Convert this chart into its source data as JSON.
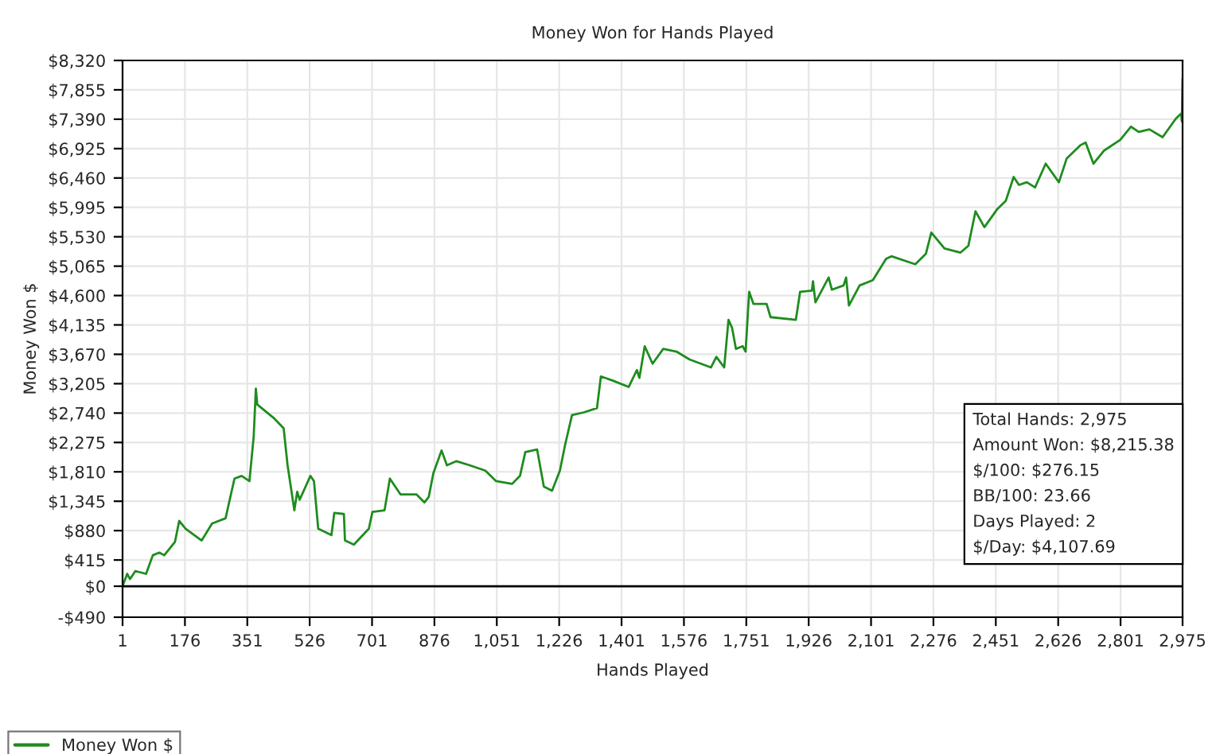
{
  "chart_data": {
    "type": "line",
    "title": "Money Won for Hands Played",
    "xlabel": "Hands Played",
    "ylabel": "Money Won $",
    "xlim": [
      1,
      2975
    ],
    "xticks": [
      1,
      176,
      351,
      526,
      701,
      876,
      {
        "value": 1051,
        "label": "1,051"
      },
      {
        "value": 1226,
        "label": "1,226"
      },
      {
        "value": 1401,
        "label": "1,401"
      },
      {
        "value": 1576,
        "label": "1,576"
      },
      {
        "value": 1751,
        "label": "1,751"
      },
      {
        "value": 1926,
        "label": "1,926"
      },
      {
        "value": 2101,
        "label": "2,101"
      },
      {
        "value": 2276,
        "label": "2,276"
      },
      {
        "value": 2451,
        "label": "2,451"
      },
      {
        "value": 2626,
        "label": "2,626"
      },
      {
        "value": 2801,
        "label": "2,801"
      },
      {
        "value": 2975,
        "label": "2,975"
      }
    ],
    "ylim": [
      -490,
      8320
    ],
    "yticks": [
      {
        "value": -490,
        "label": "-$490"
      },
      {
        "value": 0,
        "label": "$0"
      },
      {
        "value": 415,
        "label": "$415"
      },
      {
        "value": 880,
        "label": "$880"
      },
      {
        "value": 1345,
        "label": "$1,345"
      },
      {
        "value": 1810,
        "label": "$1,810"
      },
      {
        "value": 2275,
        "label": "$2,275"
      },
      {
        "value": 2740,
        "label": "$2,740"
      },
      {
        "value": 3205,
        "label": "$3,205"
      },
      {
        "value": 3670,
        "label": "$3,670"
      },
      {
        "value": 4135,
        "label": "$4,135"
      },
      {
        "value": 4600,
        "label": "$4,600"
      },
      {
        "value": 5065,
        "label": "$5,065"
      },
      {
        "value": 5530,
        "label": "$5,530"
      },
      {
        "value": 5995,
        "label": "$5,995"
      },
      {
        "value": 6460,
        "label": "$6,460"
      },
      {
        "value": 6925,
        "label": "$6,925"
      },
      {
        "value": 7390,
        "label": "$7,390"
      },
      {
        "value": 7855,
        "label": "$7,855"
      },
      {
        "value": 8320,
        "label": "$8,320"
      }
    ],
    "grid": true,
    "legend": "bottom left",
    "marker": "none",
    "line_style": "solid",
    "ref_lines": [
      {
        "axis": "y",
        "value": 0,
        "color": "#000000"
      }
    ],
    "annotations": [
      "Total Hands: 2,975",
      "Amount Won: $8,215.38",
      "$/100: $276.15",
      "BB/100: 23.66",
      "Days Played: 2",
      "$/Day: $4,107.69"
    ],
    "series": [
      {
        "name": "Money Won $",
        "color": "#1e8c1e",
        "x": [
          1,
          14,
          22,
          37,
          67,
          86,
          104,
          118,
          148,
          160,
          178,
          223,
          252,
          290,
          315,
          335,
          357,
          369,
          375,
          379,
          424,
          453,
          464,
          483,
          491,
          498,
          528,
          538,
          550,
          587,
          595,
          622,
          625,
          650,
          692,
          702,
          736,
          751,
          781,
          826,
          848,
          860,
          873,
          896,
          911,
          938,
          975,
          1019,
          1049,
          1094,
          1116,
          1131,
          1164,
          1183,
          1206,
          1228,
          1243,
          1262,
          1295,
          1332,
          1343,
          1377,
          1421,
          1444,
          1451,
          1466,
          1488,
          1518,
          1555,
          1592,
          1652,
          1667,
          1689,
          1701,
          1711,
          1722,
          1741,
          1749,
          1759,
          1771,
          1808,
          1819,
          1890,
          1902,
          1935,
          1938,
          1945,
          1982,
          1991,
          2024,
          2031,
          2039,
          2069,
          2106,
          2143,
          2158,
          2225,
          2255,
          2270,
          2307,
          2352,
          2374,
          2394,
          2419,
          2456,
          2479,
          2501,
          2516,
          2538,
          2561,
          2591,
          2628,
          2650,
          2688,
          2703,
          2725,
          2755,
          2800,
          2830,
          2852,
          2882,
          2919,
          2956,
          2971,
          2973,
          2975
        ],
        "values": [
          0,
          196,
          113,
          240,
          196,
          490,
          532,
          490,
          700,
          1035,
          910,
          724,
          992,
          1075,
          1703,
          1746,
          1663,
          2374,
          3127,
          2876,
          2668,
          2499,
          1914,
          1201,
          1495,
          1369,
          1746,
          1663,
          910,
          808,
          1161,
          1143,
          724,
          658,
          910,
          1176,
          1201,
          1703,
          1452,
          1452,
          1326,
          1412,
          1789,
          2148,
          1914,
          1979,
          1914,
          1829,
          1663,
          1620,
          1746,
          2123,
          2165,
          1578,
          1512,
          1829,
          2248,
          2708,
          2751,
          2818,
          3320,
          3253,
          3153,
          3421,
          3296,
          3798,
          3522,
          3756,
          3713,
          3587,
          3462,
          3630,
          3462,
          4215,
          4090,
          3756,
          3798,
          3713,
          4660,
          4467,
          4467,
          4258,
          4215,
          4660,
          4677,
          4827,
          4492,
          4886,
          4692,
          4760,
          4886,
          4441,
          4760,
          4843,
          5180,
          5222,
          5095,
          5263,
          5597,
          5346,
          5280,
          5388,
          5933,
          5682,
          5974,
          6099,
          6476,
          6351,
          6393,
          6310,
          6687,
          6393,
          6770,
          6978,
          7021,
          6687,
          6895,
          7062,
          7272,
          7189,
          7230,
          7105,
          7398,
          7481,
          7356,
          8030
        ]
      }
    ]
  }
}
